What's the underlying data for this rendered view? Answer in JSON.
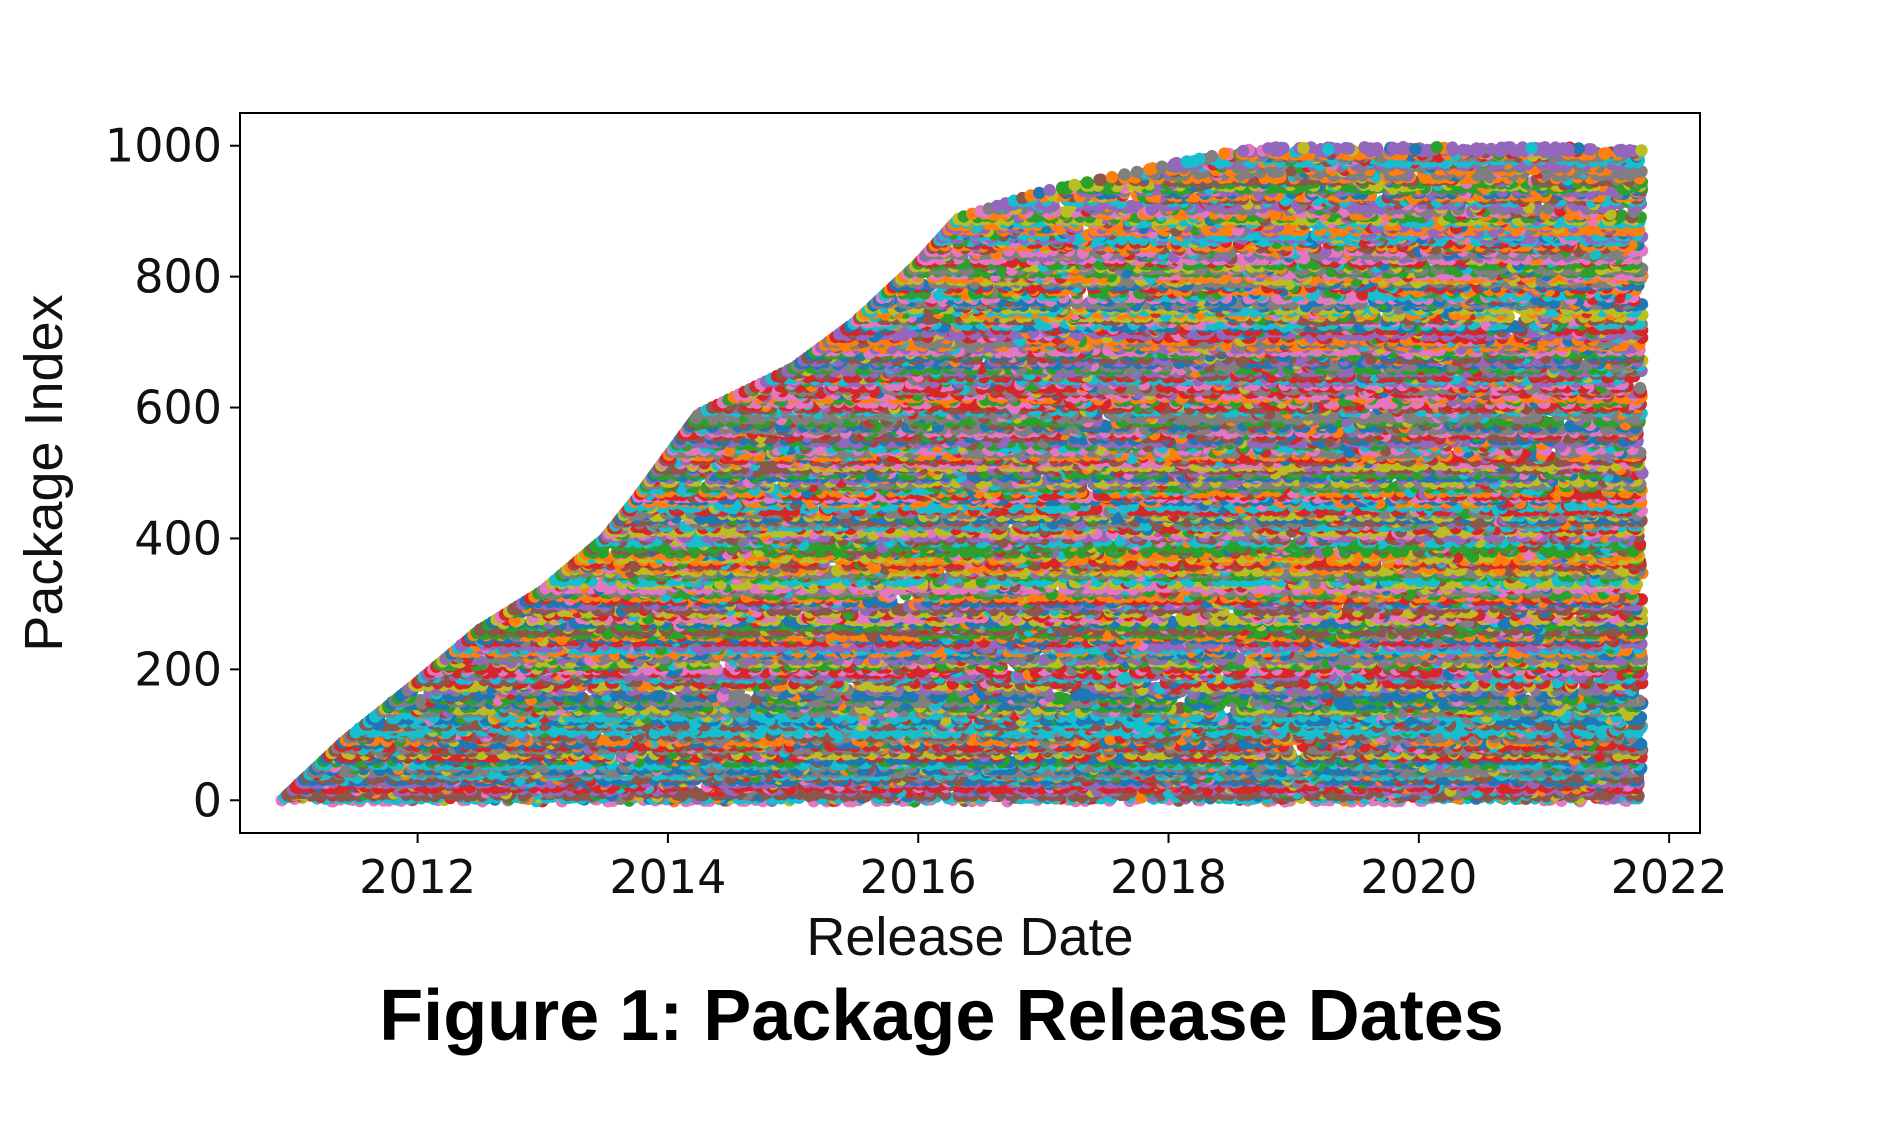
{
  "figure": {
    "caption": "Figure 1: Package Release Dates"
  },
  "chart_data": {
    "type": "scatter",
    "xlabel": "Release Date",
    "ylabel": "Package Index",
    "x_ticks": [
      "2012",
      "2014",
      "2016",
      "2018",
      "2020",
      "2022"
    ],
    "y_ticks": [
      0,
      200,
      400,
      600,
      800,
      1000
    ],
    "xlim": [
      "2010-08-01",
      "2022-04-01"
    ],
    "ylim": [
      -50,
      1050
    ],
    "grid": false,
    "legend": "none",
    "n_packages": 1000,
    "data_end": "2021-10-15",
    "first_release_frontier": [
      {
        "x": "2010-12-01",
        "y": 0
      },
      {
        "x": "2011-06-01",
        "y": 90
      },
      {
        "x": "2012-01-01",
        "y": 180
      },
      {
        "x": "2012-07-01",
        "y": 260
      },
      {
        "x": "2013-01-01",
        "y": 320
      },
      {
        "x": "2013-07-01",
        "y": 400
      },
      {
        "x": "2013-10-01",
        "y": 460
      },
      {
        "x": "2014-04-01",
        "y": 590
      },
      {
        "x": "2015-01-01",
        "y": 660
      },
      {
        "x": "2015-07-01",
        "y": 730
      },
      {
        "x": "2016-01-01",
        "y": 820
      },
      {
        "x": "2016-05-01",
        "y": 890
      },
      {
        "x": "2017-01-01",
        "y": 930
      },
      {
        "x": "2017-10-01",
        "y": 960
      },
      {
        "x": "2018-07-01",
        "y": 990
      },
      {
        "x": "2019-01-01",
        "y": 1000
      }
    ],
    "colors": [
      "#1f77b4",
      "#ff7f0e",
      "#2ca02c",
      "#d62728",
      "#9467bd",
      "#8c564b",
      "#e377c2",
      "#7f7f7f",
      "#bcbd22",
      "#17becf"
    ]
  }
}
